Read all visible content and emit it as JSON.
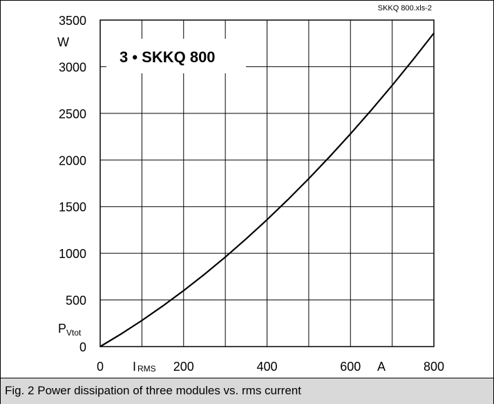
{
  "chart_data": {
    "type": "line",
    "source_label": "SKKQ 800.xls-2",
    "inset_title": "3 • SKKQ 800",
    "ylabel_unit": "W",
    "ylabel_symbol": "P",
    "ylabel_subscript": "Vtot",
    "xlabel_symbol": "I",
    "xlabel_subscript": "RMS",
    "xlabel_unit": "A",
    "xlim": [
      0,
      800
    ],
    "ylim": [
      0,
      3500
    ],
    "x_ticks": [
      {
        "value": 0,
        "label": "0"
      },
      {
        "value": 200,
        "label": "200"
      },
      {
        "value": 400,
        "label": "400"
      },
      {
        "value": 600,
        "label": "600"
      },
      {
        "value": 800,
        "label": "800"
      }
    ],
    "y_ticks": [
      {
        "value": 0,
        "label": "0"
      },
      {
        "value": 500,
        "label": "500"
      },
      {
        "value": 1000,
        "label": "1000"
      },
      {
        "value": 1500,
        "label": "1500"
      },
      {
        "value": 2000,
        "label": "2000"
      },
      {
        "value": 2500,
        "label": "2500"
      },
      {
        "value": 3000,
        "label": "3000"
      },
      {
        "value": 3500,
        "label": "3500"
      }
    ],
    "x_grid": [
      100,
      200,
      300,
      400,
      500,
      600,
      700
    ],
    "y_grid": [
      500,
      1000,
      1500,
      2000,
      2500,
      3000
    ],
    "grid": true,
    "series": [
      {
        "x": [
          0,
          50,
          100,
          150,
          200,
          250,
          300,
          350,
          400,
          450,
          500,
          550,
          600,
          650,
          700,
          750,
          800
        ],
        "y": [
          0,
          135,
          280,
          435,
          600,
          775,
          960,
          1155,
          1360,
          1575,
          1800,
          2035,
          2280,
          2535,
          2800,
          3075,
          3360
        ],
        "color": "#000000"
      }
    ]
  },
  "caption": "Fig. 2 Power dissipation of three modules vs. rms current"
}
